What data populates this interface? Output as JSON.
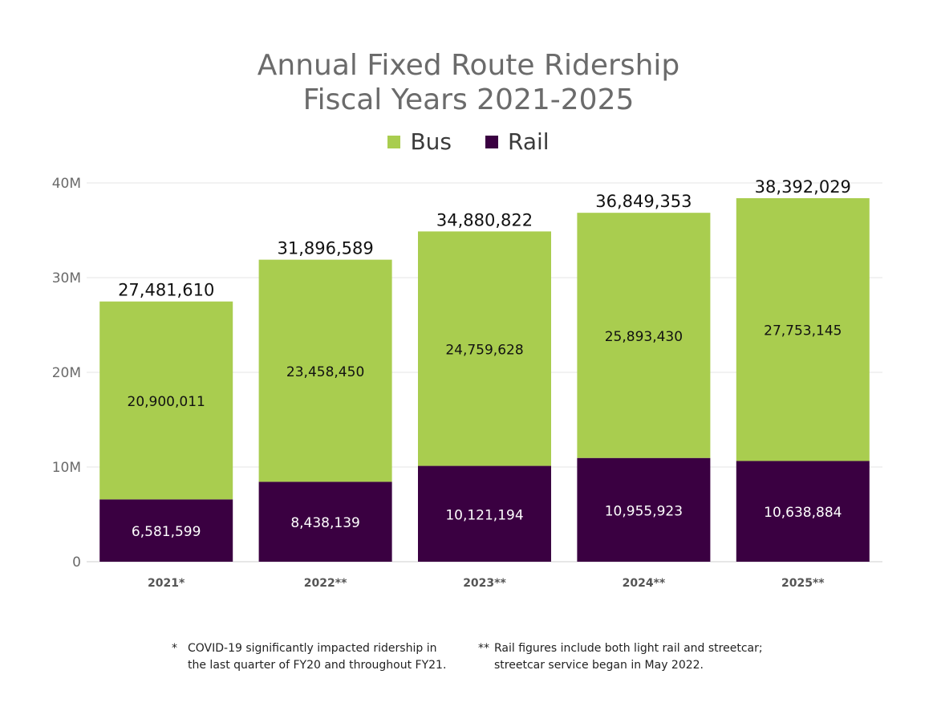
{
  "title": {
    "line1": "Annual Fixed Route Ridership",
    "line2": "Fiscal Years 2021-2025"
  },
  "legend": [
    {
      "label": "Bus",
      "color": "#a9cd4f"
    },
    {
      "label": "Rail",
      "color": "#3a0041"
    }
  ],
  "chart_data": {
    "type": "bar",
    "stacked": true,
    "categories": [
      "2021*",
      "2022**",
      "2023**",
      "2024**",
      "2025**"
    ],
    "series": [
      {
        "name": "Rail",
        "color": "#3a0041",
        "values": [
          6581599,
          8438139,
          10121194,
          10955923,
          10638884
        ],
        "labels": [
          "6,581,599",
          "8,438,139",
          "10,121,194",
          "10,955,923",
          "10,638,884"
        ]
      },
      {
        "name": "Bus",
        "color": "#a9cd4f",
        "values": [
          20900011,
          23458450,
          24759628,
          25893430,
          27753145
        ],
        "labels": [
          "20,900,011",
          "23,458,450",
          "24,759,628",
          "25,893,430",
          "27,753,145"
        ]
      }
    ],
    "totals": [
      "27,481,610",
      "31,896,589",
      "34,880,822",
      "36,849,353",
      "38,392,029"
    ],
    "ylim": [
      0,
      40000000
    ],
    "yticks": [
      {
        "value": 0,
        "label": "0"
      },
      {
        "value": 10000000,
        "label": "10M"
      },
      {
        "value": 20000000,
        "label": "20M"
      },
      {
        "value": 30000000,
        "label": "30M"
      },
      {
        "value": 40000000,
        "label": "40M"
      }
    ],
    "grid": true,
    "legend_position": "top-center"
  },
  "footnotes": [
    {
      "mark": "*",
      "text": "COVID-19 significantly impacted ridership in\nthe last quarter of FY20 and throughout FY21."
    },
    {
      "mark": "**",
      "text": "Rail figures include both light rail and streetcar;\nstreetcar service began in May 2022."
    }
  ]
}
